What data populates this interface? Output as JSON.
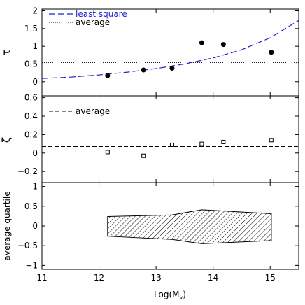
{
  "chart_data": [
    {
      "type": "scatter",
      "ylabel": "τ",
      "xlim": [
        11,
        15.5
      ],
      "ylim": [
        -0.4,
        2.05
      ],
      "yticks": [
        0,
        0.5,
        1,
        1.5,
        2
      ],
      "ytick_labels": [
        "0",
        "0.5",
        "1",
        "1.5",
        "2"
      ],
      "legend": [
        "least square",
        "average"
      ],
      "legend_placement": "top-left",
      "points": {
        "x": [
          12.15,
          12.78,
          13.28,
          13.8,
          14.18,
          15.02
        ],
        "y": [
          0.17,
          0.33,
          0.38,
          1.1,
          1.05,
          0.83
        ]
      },
      "average": 0.54,
      "least_square": {
        "x": [
          11,
          11.5,
          12,
          12.5,
          13,
          13.5,
          14,
          14.5,
          15,
          15.5
        ],
        "y": [
          0.09,
          0.13,
          0.19,
          0.27,
          0.37,
          0.5,
          0.67,
          0.9,
          1.24,
          1.73
        ]
      },
      "colors": {
        "least_square": "#2222cc",
        "average": "#000000",
        "points": "#000000"
      }
    },
    {
      "type": "scatter",
      "ylabel": "ζ",
      "xlim": [
        11,
        15.5
      ],
      "ylim": [
        -0.32,
        0.62
      ],
      "yticks": [
        -0.2,
        0,
        0.2,
        0.4,
        0.6
      ],
      "ytick_labels": [
        "−0.2",
        "0",
        "0.2",
        "0.4",
        "0.6"
      ],
      "legend": [
        "average"
      ],
      "legend_placement": "top-left",
      "points": {
        "x": [
          12.15,
          12.78,
          13.28,
          13.8,
          14.18,
          15.02
        ],
        "y": [
          0.01,
          -0.03,
          0.09,
          0.1,
          0.12,
          0.14
        ],
        "yerr": [
          0.02,
          0.015,
          0.01,
          0.01,
          0.01,
          0.01
        ]
      },
      "average": 0.07
    },
    {
      "type": "area",
      "ylabel": "average quartile",
      "xlabel": "Log(M",
      "xlabel_sub": "v",
      "xlabel_close": ")",
      "xlim": [
        11,
        15.5
      ],
      "ylim": [
        -1.1,
        1.1
      ],
      "yticks": [
        -1,
        -0.5,
        0,
        0.5,
        1
      ],
      "ytick_labels": [
        "−1",
        "−0.5",
        "0",
        "0.5",
        "1"
      ],
      "xticks": [
        11,
        12,
        13,
        14,
        15
      ],
      "xtick_labels": [
        "11",
        "12",
        "13",
        "14",
        "15"
      ],
      "band": {
        "x": [
          12.15,
          13.28,
          13.8,
          15.02
        ],
        "upper": [
          0.24,
          0.28,
          0.41,
          0.31
        ],
        "lower": [
          -0.26,
          -0.34,
          -0.45,
          -0.37
        ]
      }
    }
  ]
}
